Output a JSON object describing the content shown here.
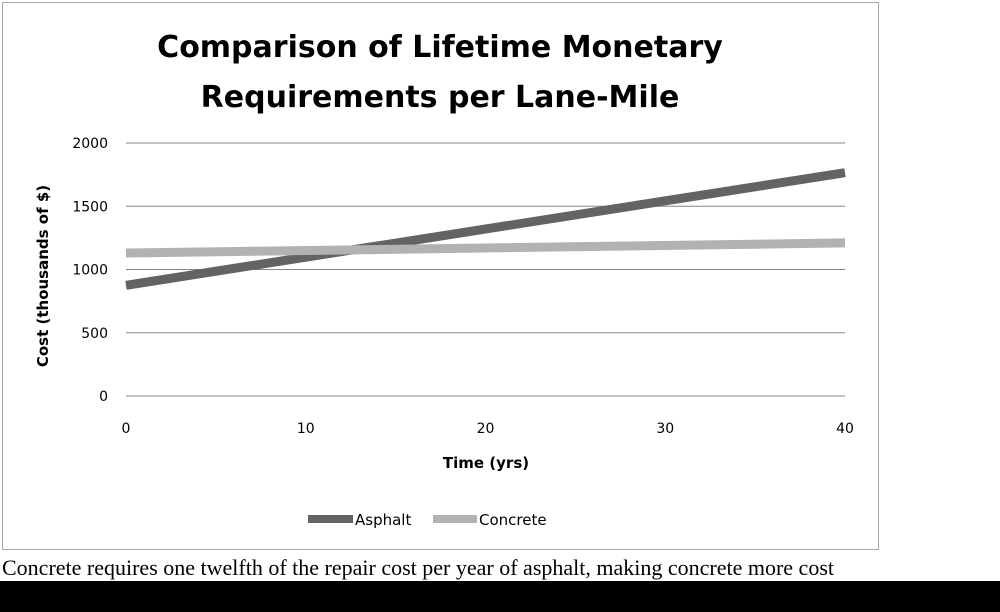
{
  "chart_data": {
    "type": "line",
    "title": [
      "Comparison of Lifetime Monetary",
      "Requirements per Lane-Mile"
    ],
    "xlabel": "Time (yrs)",
    "ylabel": "Cost (thousands of $)",
    "xlim": [
      0,
      40
    ],
    "ylim": [
      0,
      2000
    ],
    "xticks": [
      0,
      10,
      20,
      30,
      40
    ],
    "yticks": [
      0,
      500,
      1000,
      1500,
      2000
    ],
    "grid": "horizontal",
    "legend_position": "bottom",
    "series": [
      {
        "name": "Asphalt",
        "color": "#636363",
        "x": [
          0,
          40
        ],
        "y": [
          875,
          1765
        ]
      },
      {
        "name": "Concrete",
        "color": "#b2b2b2",
        "x": [
          0,
          40
        ],
        "y": [
          1130,
          1210
        ]
      }
    ]
  },
  "caption": "Concrete requires one twelfth of the repair cost per year of asphalt, making concrete more cost"
}
